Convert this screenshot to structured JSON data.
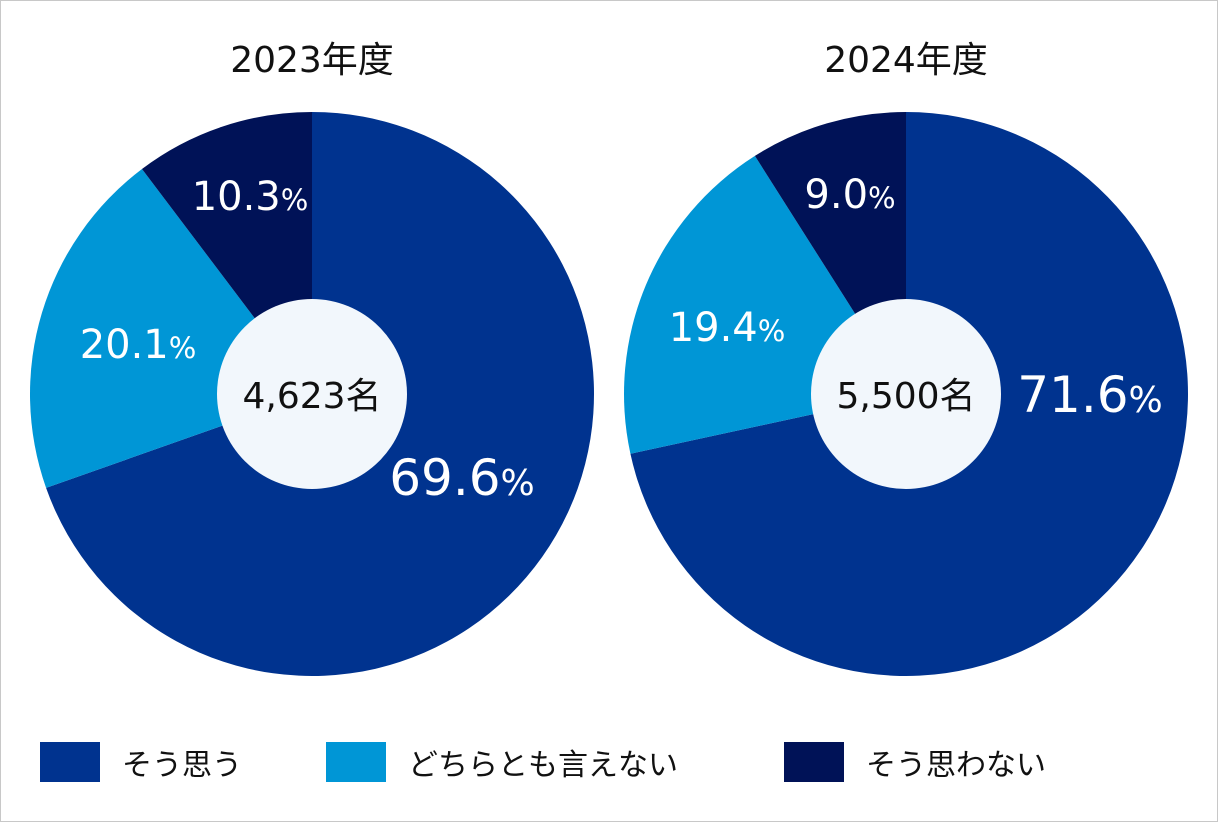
{
  "chart_data": [
    {
      "type": "pie",
      "title": "2023年度",
      "center_label": "4,623名",
      "categories": [
        "そう思う",
        "どちらとも言えない",
        "そう思わない"
      ],
      "values": [
        69.6,
        20.1,
        10.3
      ],
      "labels": [
        "69.6",
        "20.1",
        "10.3"
      ],
      "unit": "%"
    },
    {
      "type": "pie",
      "title": "2024年度",
      "center_label": "5,500名",
      "categories": [
        "そう思う",
        "どちらとも言えない",
        "そう思わない"
      ],
      "values": [
        71.6,
        19.4,
        9.0
      ],
      "labels": [
        "71.6",
        "19.4",
        "9.0"
      ],
      "unit": "%"
    }
  ],
  "colors": [
    "#00338f",
    "#0096d6",
    "#001257"
  ],
  "center_color": "#f2f7fc",
  "legend": [
    {
      "label": "そう思う",
      "color": "#00338f"
    },
    {
      "label": "どちらとも言えない",
      "color": "#0096d6"
    },
    {
      "label": "そう思わない",
      "color": "#001257"
    }
  ]
}
